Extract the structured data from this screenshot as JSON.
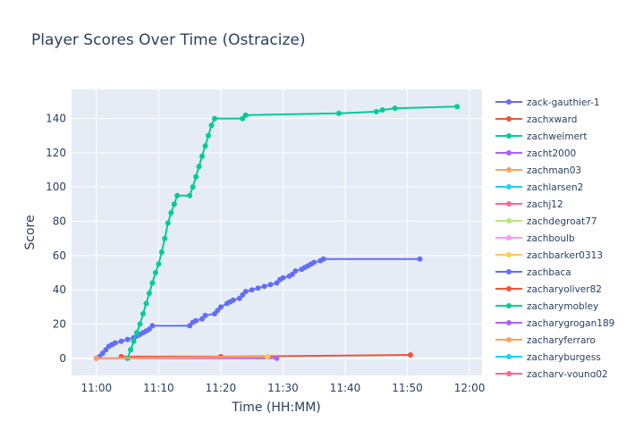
{
  "chart_data": {
    "type": "line",
    "title": "Player Scores Over Time (Ostracize)",
    "xlabel": "Time (HH:MM)",
    "ylabel": "Score",
    "xlim": [
      "10:56",
      "12:02"
    ],
    "ylim": [
      -10,
      157
    ],
    "x_ticks": [
      "11:00",
      "11:10",
      "11:20",
      "11:30",
      "11:40",
      "11:50",
      "12:00"
    ],
    "y_ticks": [
      0,
      20,
      40,
      60,
      80,
      100,
      120,
      140
    ],
    "grid": true,
    "legend_position": "right",
    "series": [
      {
        "name": "zack-gauthier-1",
        "color": "#636efa",
        "points": [
          [
            "11:00",
            0
          ],
          [
            "11:00.5",
            1
          ],
          [
            "11:01",
            3
          ],
          [
            "11:01.5",
            5
          ],
          [
            "11:02",
            7
          ],
          [
            "11:02.5",
            8
          ],
          [
            "11:03",
            9
          ],
          [
            "11:04",
            10
          ],
          [
            "11:05",
            11
          ],
          [
            "11:06",
            12
          ],
          [
            "11:06.5",
            13
          ],
          [
            "11:07",
            14
          ],
          [
            "11:07.5",
            15
          ],
          [
            "11:08",
            16
          ],
          [
            "11:08.5",
            17
          ],
          [
            "11:09",
            19
          ],
          [
            "11:15",
            19
          ],
          [
            "11:15.5",
            21
          ],
          [
            "11:16",
            22
          ],
          [
            "11:17",
            23
          ],
          [
            "11:17.5",
            25
          ],
          [
            "11:19",
            26
          ],
          [
            "11:19.5",
            28
          ],
          [
            "11:20",
            30
          ],
          [
            "11:21",
            32
          ],
          [
            "11:21.5",
            33
          ],
          [
            "11:22",
            34
          ],
          [
            "11:23",
            35
          ],
          [
            "11:23.5",
            37
          ],
          [
            "11:24",
            39
          ],
          [
            "11:25",
            40
          ],
          [
            "11:26",
            41
          ],
          [
            "11:27",
            42
          ],
          [
            "11:28",
            43
          ],
          [
            "11:29",
            44
          ],
          [
            "11:29.5",
            46
          ],
          [
            "11:30",
            47
          ],
          [
            "11:31",
            48
          ],
          [
            "11:31.5",
            49
          ],
          [
            "11:32",
            51
          ],
          [
            "11:33",
            52
          ],
          [
            "11:33.5",
            53
          ],
          [
            "11:34",
            54
          ],
          [
            "11:34.5",
            55
          ],
          [
            "11:35",
            56
          ],
          [
            "11:36",
            57
          ],
          [
            "11:36.5",
            58
          ],
          [
            "11:52",
            58
          ]
        ]
      },
      {
        "name": "zachxward",
        "color": "#ef553b",
        "points": [
          [
            "11:04",
            1
          ],
          [
            "11:20",
            1
          ],
          [
            "11:50.5",
            2
          ]
        ]
      },
      {
        "name": "zachweimert",
        "color": "#00cc96",
        "points": [
          [
            "11:05",
            0
          ],
          [
            "11:05.5",
            5
          ],
          [
            "11:06",
            10
          ],
          [
            "11:06.5",
            15
          ],
          [
            "11:07",
            20
          ],
          [
            "11:07.5",
            26
          ],
          [
            "11:08",
            32
          ],
          [
            "11:08.5",
            38
          ],
          [
            "11:09",
            44
          ],
          [
            "11:09.5",
            50
          ],
          [
            "11:10",
            55
          ],
          [
            "11:10.5",
            62
          ],
          [
            "11:11",
            70
          ],
          [
            "11:11.5",
            79
          ],
          [
            "11:12",
            85
          ],
          [
            "11:12.5",
            90
          ],
          [
            "11:13",
            95
          ],
          [
            "11:15",
            95
          ],
          [
            "11:15.5",
            100
          ],
          [
            "11:16",
            106
          ],
          [
            "11:16.5",
            112
          ],
          [
            "11:17",
            118
          ],
          [
            "11:17.5",
            124
          ],
          [
            "11:18",
            130
          ],
          [
            "11:18.5",
            136
          ],
          [
            "11:19",
            140
          ],
          [
            "11:23.5",
            140
          ],
          [
            "11:24",
            142
          ],
          [
            "11:39",
            143
          ],
          [
            "11:45",
            144
          ],
          [
            "11:46",
            145
          ],
          [
            "11:48",
            146
          ],
          [
            "11:58",
            147
          ]
        ]
      },
      {
        "name": "zacht2000",
        "color": "#ab63fa",
        "points": [
          [
            "11:00",
            0
          ],
          [
            "11:29",
            0
          ]
        ]
      },
      {
        "name": "zachman03",
        "color": "#ffa15a",
        "points": [
          [
            "11:00",
            0
          ],
          [
            "11:27.5",
            1
          ]
        ]
      },
      {
        "name": "zachlarsen2",
        "color": "#19d3f3",
        "points": []
      },
      {
        "name": "zachj12",
        "color": "#ff6692",
        "points": []
      },
      {
        "name": "zachdegroat77",
        "color": "#b6e880",
        "points": []
      },
      {
        "name": "zachboulb",
        "color": "#ff97ff",
        "points": []
      },
      {
        "name": "zachbarker0313",
        "color": "#fecb52",
        "points": [
          [
            "11:27.5",
            1
          ]
        ]
      },
      {
        "name": "zachbaca",
        "color": "#636efa",
        "points": []
      },
      {
        "name": "zacharyoliver82",
        "color": "#ef553b",
        "points": []
      },
      {
        "name": "zacharymobley",
        "color": "#00cc96",
        "points": []
      },
      {
        "name": "zacharygrogan189",
        "color": "#ab63fa",
        "points": []
      },
      {
        "name": "zacharyferraro",
        "color": "#ffa15a",
        "points": []
      },
      {
        "name": "zacharyburgess",
        "color": "#19d3f3",
        "points": []
      },
      {
        "name": "zachary-young02",
        "color": "#ff6692",
        "points": []
      }
    ]
  }
}
